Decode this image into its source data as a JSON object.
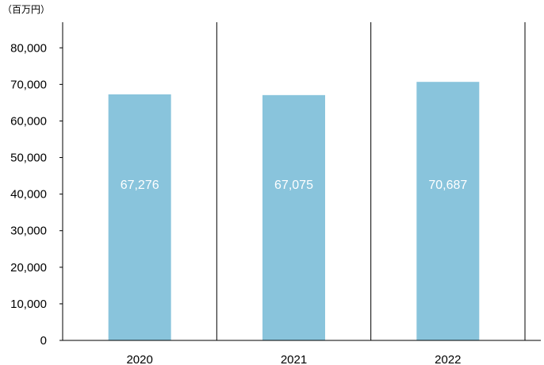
{
  "chart_data": {
    "type": "bar",
    "unit_label": "（百万円）",
    "categories": [
      "2020",
      "2021",
      "2022"
    ],
    "values": [
      67276,
      67075,
      70687
    ],
    "data_labels": [
      "67,276",
      "67,075",
      "70,687"
    ],
    "ylim": [
      0,
      87000
    ],
    "yticks": [
      0,
      10000,
      20000,
      30000,
      40000,
      50000,
      60000,
      70000,
      80000
    ],
    "ytick_labels": [
      "0",
      "10,000",
      "20,000",
      "30,000",
      "40,000",
      "50,000",
      "60,000",
      "70,000",
      "80,000"
    ],
    "grid": false,
    "bar_color": "#89c4dc",
    "axis_color": "#000000"
  }
}
